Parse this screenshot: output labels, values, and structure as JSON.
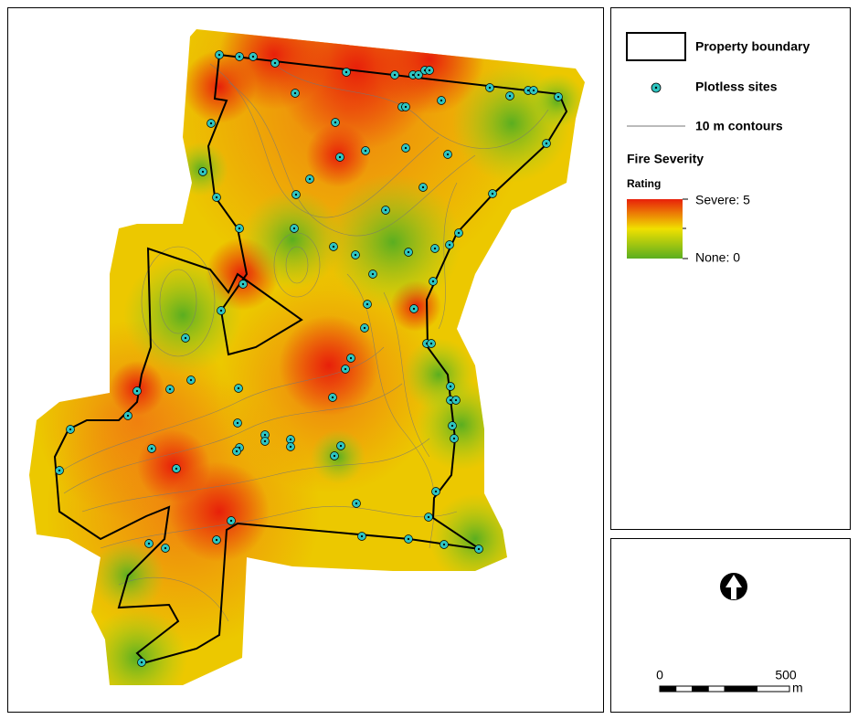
{
  "legend": {
    "boundary": "Property boundary",
    "sites": "Plotless sites",
    "contours": "10 m contours",
    "severity_title": "Fire Severity",
    "rating": "Rating",
    "high": "Severe: 5",
    "low": "None: 0"
  },
  "scale_bar": {
    "start": "0",
    "end": "500",
    "unit": "m"
  }
}
